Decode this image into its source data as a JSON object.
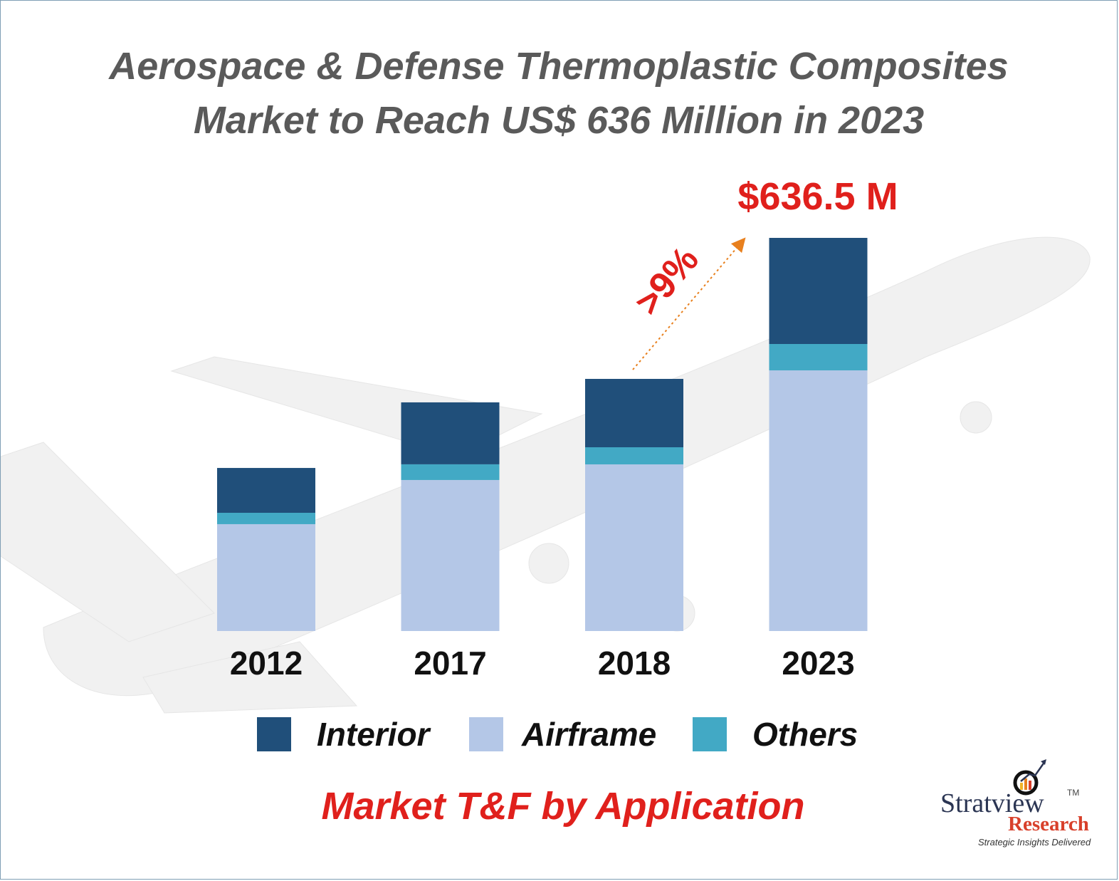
{
  "title_lines": [
    "Aerospace & Defense Thermoplastic Composites",
    "Market to Reach US$ 636 Million in 2023"
  ],
  "chart_data": {
    "type": "bar",
    "stacked": true,
    "title": "Aerospace & Defense Thermoplastic Composites Market to Reach US$ 636 Million in 2023",
    "subtitle": "Market T&F by Application",
    "categories": [
      "2012",
      "2017",
      "2018",
      "2023"
    ],
    "series": [
      {
        "name": "Airframe",
        "color": "#b4c7e7",
        "values": [
          173.0,
          244.5,
          269.8,
          422.0
        ]
      },
      {
        "name": "Others",
        "color": "#42a9c5",
        "values": [
          18.4,
          25.4,
          27.7,
          42.7
        ]
      },
      {
        "name": "Interior",
        "color": "#204f7a",
        "values": [
          72.6,
          100.3,
          110.7,
          171.8
        ]
      }
    ],
    "legend_order": [
      "Interior",
      "Airframe",
      "Others"
    ],
    "annotations": {
      "total_2023": "$636.5 M",
      "cagr": ">9%"
    },
    "xlabel": "",
    "ylabel": "",
    "ylim": [
      0,
      640
    ],
    "grid": false,
    "legend": "bottom"
  },
  "logo": {
    "name": "Stratview",
    "tm": "TM",
    "sub": "Research",
    "tagline": "Strategic Insights Delivered"
  },
  "colors": {
    "title": "#5a5a5a",
    "accent": "#e0201c",
    "arrow": "#e8801e"
  }
}
